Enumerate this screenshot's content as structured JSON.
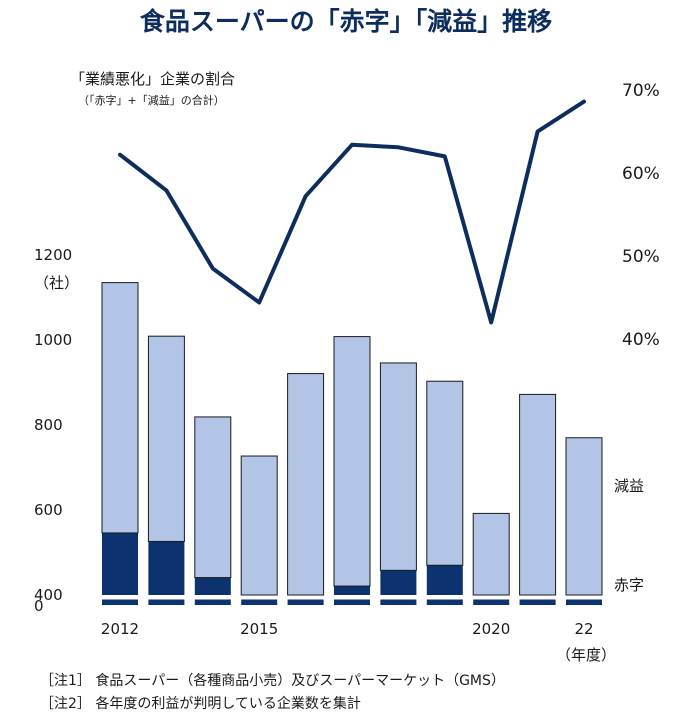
{
  "title": "食品スーパーの「赤字」「減益」推移",
  "right_axis": {
    "title": "「業績悪化」企業の割合",
    "subtitle": "（「赤字」+「減益」の合計）",
    "ticks": [
      "70%",
      "60%",
      "50%",
      "40%"
    ],
    "tick_values": [
      70,
      60,
      50,
      40
    ]
  },
  "left_axis": {
    "unit": "（社）",
    "ticks": [
      "0",
      "400",
      "600",
      "800",
      "1000",
      "1200"
    ],
    "tick_values": [
      0,
      400,
      600,
      800,
      1000,
      1200
    ]
  },
  "x_axis": {
    "labels": [
      "2012",
      "2015",
      "2020",
      "22"
    ],
    "label_years": [
      2012,
      2015,
      2020,
      2022
    ],
    "unit": "（年度）"
  },
  "legend": {
    "genek": "減益",
    "akaji": "赤字"
  },
  "colors": {
    "akaji": "#0d3270",
    "genek": "#b3c5e6",
    "line": "#0d2d5e",
    "title": "#0d2d5e"
  },
  "chart_data": {
    "type": "bar+line",
    "x": [
      2012,
      2013,
      2014,
      2015,
      2016,
      2017,
      2018,
      2019,
      2020,
      2021,
      2022
    ],
    "series": [
      {
        "name": "赤字",
        "kind": "stacked-bar",
        "values": [
          546,
          526,
          441,
          339,
          371,
          421,
          458,
          470,
          380,
          389,
          353
        ]
      },
      {
        "name": "減益",
        "kind": "stacked-bar",
        "values": [
          589,
          483,
          378,
          388,
          550,
          587,
          488,
          433,
          212,
          483,
          417
        ]
      },
      {
        "kind": "line",
        "axis": "right",
        "values": [
          62.2,
          57.9,
          48.5,
          44.4,
          57.2,
          63.4,
          63.1,
          62.0,
          42.0,
          65.0,
          68.6
        ]
      }
    ],
    "ylim_left": [
      0,
      1200
    ],
    "ylim_right": [
      40,
      70
    ],
    "axis_break_left": [
      0,
      400
    ]
  },
  "notes": [
    "［注1］ 食品スーパー（各種商品小売）及びスーパーマーケット（GMS）",
    "［注2］ 各年度の利益が判明している企業数を集計"
  ]
}
